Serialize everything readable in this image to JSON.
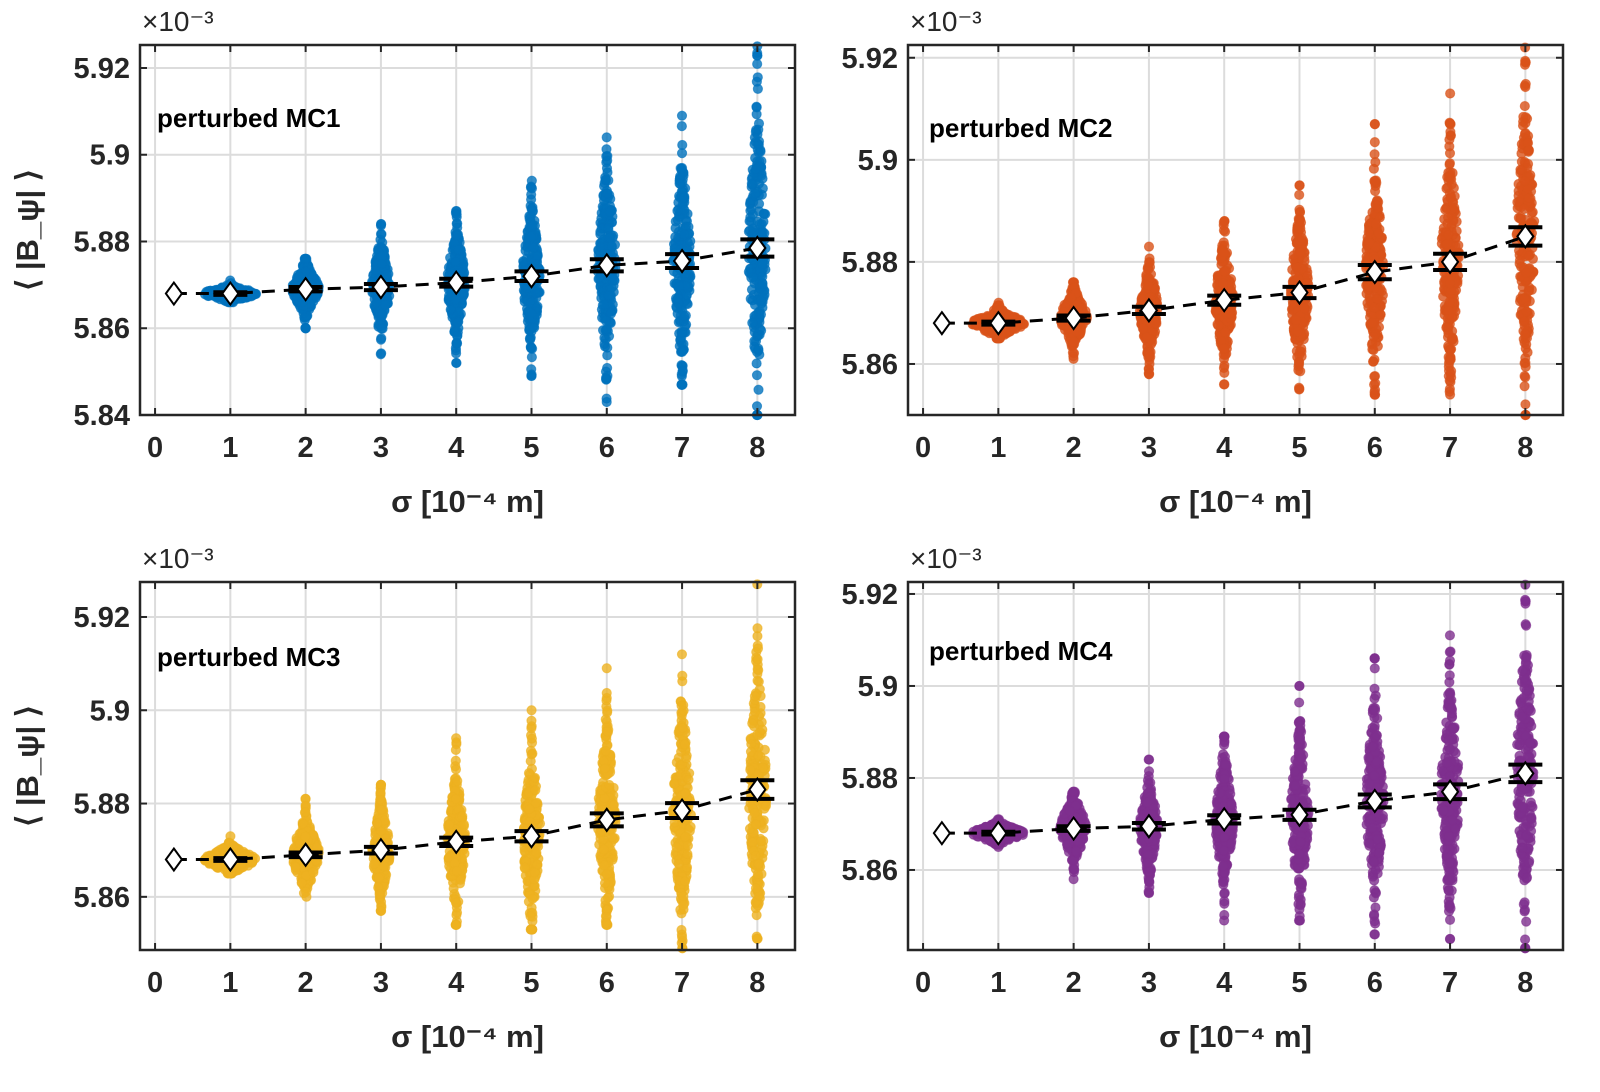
{
  "chart_data": [
    {
      "type": "scatter",
      "annotation": "perturbed MC1",
      "xlabel": "σ [10⁻⁴ m]",
      "ylabel": "⟨ |B_ψ| ⟩",
      "y_exponent": "×10⁻³",
      "color": "#0072BD",
      "xlim": [
        -0.2,
        8.5
      ],
      "ylim": [
        5.84,
        5.9253
      ],
      "xticks": [
        "0",
        "1",
        "2",
        "3",
        "4",
        "5",
        "6",
        "7",
        "8"
      ],
      "yticks": [
        "5.84",
        "5.86",
        "5.88",
        "5.9",
        "5.92"
      ],
      "grid": true,
      "reference": {
        "x": 0.25,
        "y": 5.868
      },
      "groups": [
        {
          "sigma": 1,
          "mean": 5.868,
          "err": 0.0003,
          "min": 5.866,
          "max": 5.871
        },
        {
          "sigma": 2,
          "mean": 5.869,
          "err": 0.0005,
          "min": 5.86,
          "max": 5.876
        },
        {
          "sigma": 3,
          "mean": 5.8695,
          "err": 0.0007,
          "min": 5.854,
          "max": 5.884
        },
        {
          "sigma": 4,
          "mean": 5.8705,
          "err": 0.0009,
          "min": 5.852,
          "max": 5.887
        },
        {
          "sigma": 5,
          "mean": 5.872,
          "err": 0.0011,
          "min": 5.849,
          "max": 5.894
        },
        {
          "sigma": 6,
          "mean": 5.8745,
          "err": 0.0014,
          "min": 5.843,
          "max": 5.904
        },
        {
          "sigma": 7,
          "mean": 5.8755,
          "err": 0.0016,
          "min": 5.847,
          "max": 5.909
        },
        {
          "sigma": 8,
          "mean": 5.8785,
          "err": 0.002,
          "min": 5.84,
          "max": 5.925
        }
      ]
    },
    {
      "type": "scatter",
      "annotation": "perturbed MC2",
      "xlabel": "σ [10⁻⁴ m]",
      "ylabel": "",
      "y_exponent": "×10⁻³",
      "color": "#D95319",
      "xlim": [
        -0.2,
        8.5
      ],
      "ylim": [
        5.85,
        5.9225
      ],
      "xticks": [
        "0",
        "1",
        "2",
        "3",
        "4",
        "5",
        "6",
        "7",
        "8"
      ],
      "yticks": [
        "5.86",
        "5.88",
        "5.9",
        "5.92"
      ],
      "grid": true,
      "reference": {
        "x": 0.25,
        "y": 5.868
      },
      "groups": [
        {
          "sigma": 1,
          "mean": 5.868,
          "err": 0.0003,
          "min": 5.865,
          "max": 5.872
        },
        {
          "sigma": 2,
          "mean": 5.869,
          "err": 0.0005,
          "min": 5.861,
          "max": 5.876
        },
        {
          "sigma": 3,
          "mean": 5.8705,
          "err": 0.0007,
          "min": 5.858,
          "max": 5.883
        },
        {
          "sigma": 4,
          "mean": 5.8725,
          "err": 0.0009,
          "min": 5.856,
          "max": 5.888
        },
        {
          "sigma": 5,
          "mean": 5.874,
          "err": 0.0011,
          "min": 5.855,
          "max": 5.895
        },
        {
          "sigma": 6,
          "mean": 5.878,
          "err": 0.0014,
          "min": 5.854,
          "max": 5.907
        },
        {
          "sigma": 7,
          "mean": 5.88,
          "err": 0.0016,
          "min": 5.854,
          "max": 5.913
        },
        {
          "sigma": 8,
          "mean": 5.885,
          "err": 0.0018,
          "min": 5.85,
          "max": 5.922
        }
      ]
    },
    {
      "type": "scatter",
      "annotation": "perturbed MC3",
      "xlabel": "σ [10⁻⁴ m]",
      "ylabel": "⟨ |B_ψ| ⟩",
      "y_exponent": "×10⁻³",
      "color": "#EDB120",
      "xlim": [
        -0.2,
        8.5
      ],
      "ylim": [
        5.8486,
        5.9275
      ],
      "xticks": [
        "0",
        "1",
        "2",
        "3",
        "4",
        "5",
        "6",
        "7",
        "8"
      ],
      "yticks": [
        "5.86",
        "5.88",
        "5.9",
        "5.92"
      ],
      "grid": true,
      "reference": {
        "x": 0.25,
        "y": 5.868
      },
      "groups": [
        {
          "sigma": 1,
          "mean": 5.868,
          "err": 0.0003,
          "min": 5.865,
          "max": 5.873
        },
        {
          "sigma": 2,
          "mean": 5.869,
          "err": 0.0005,
          "min": 5.86,
          "max": 5.881
        },
        {
          "sigma": 3,
          "mean": 5.87,
          "err": 0.0007,
          "min": 5.857,
          "max": 5.884
        },
        {
          "sigma": 4,
          "mean": 5.8718,
          "err": 0.0009,
          "min": 5.854,
          "max": 5.894
        },
        {
          "sigma": 5,
          "mean": 5.873,
          "err": 0.0011,
          "min": 5.853,
          "max": 5.9
        },
        {
          "sigma": 6,
          "mean": 5.8765,
          "err": 0.0014,
          "min": 5.854,
          "max": 5.909
        },
        {
          "sigma": 7,
          "mean": 5.8785,
          "err": 0.0016,
          "min": 5.849,
          "max": 5.912
        },
        {
          "sigma": 8,
          "mean": 5.883,
          "err": 0.002,
          "min": 5.851,
          "max": 5.927
        }
      ]
    },
    {
      "type": "scatter",
      "annotation": "perturbed MC4",
      "xlabel": "σ [10⁻⁴ m]",
      "ylabel": "",
      "y_exponent": "×10⁻³",
      "color": "#7E2F8E",
      "xlim": [
        -0.2,
        8.5
      ],
      "ylim": [
        5.8426,
        5.9226
      ],
      "xticks": [
        "0",
        "1",
        "2",
        "3",
        "4",
        "5",
        "6",
        "7",
        "8"
      ],
      "yticks": [
        "5.86",
        "5.88",
        "5.9",
        "5.92"
      ],
      "grid": true,
      "reference": {
        "x": 0.25,
        "y": 5.868
      },
      "groups": [
        {
          "sigma": 1,
          "mean": 5.868,
          "err": 0.0003,
          "min": 5.865,
          "max": 5.871
        },
        {
          "sigma": 2,
          "mean": 5.869,
          "err": 0.0005,
          "min": 5.858,
          "max": 5.877
        },
        {
          "sigma": 3,
          "mean": 5.8695,
          "err": 0.0007,
          "min": 5.855,
          "max": 5.884
        },
        {
          "sigma": 4,
          "mean": 5.871,
          "err": 0.0009,
          "min": 5.849,
          "max": 5.889
        },
        {
          "sigma": 5,
          "mean": 5.872,
          "err": 0.0011,
          "min": 5.849,
          "max": 5.9
        },
        {
          "sigma": 6,
          "mean": 5.875,
          "err": 0.0014,
          "min": 5.846,
          "max": 5.906
        },
        {
          "sigma": 7,
          "mean": 5.877,
          "err": 0.0016,
          "min": 5.845,
          "max": 5.911
        },
        {
          "sigma": 8,
          "mean": 5.881,
          "err": 0.0019,
          "min": 5.843,
          "max": 5.922
        }
      ]
    }
  ]
}
